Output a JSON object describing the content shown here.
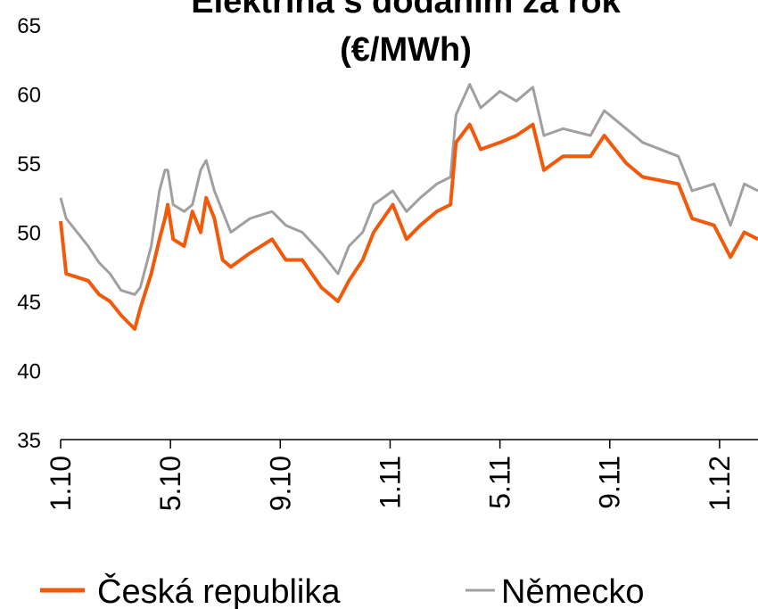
{
  "chart_data": {
    "type": "line",
    "title": [
      "Elektřina s dodáním za rok",
      "(€/MWh)"
    ],
    "x": [
      0,
      0.2,
      1.0,
      1.4,
      1.8,
      2.2,
      2.7,
      2.9,
      3.3,
      3.6,
      3.8,
      3.9,
      4.1,
      4.5,
      4.8,
      5.1,
      5.3,
      5.6,
      5.9,
      6.2,
      6.9,
      7.7,
      8.2,
      8.8,
      9.5,
      10.1,
      10.5,
      11.0,
      11.4,
      12.1,
      12.6,
      13.1,
      13.7,
      14.2,
      14.4,
      14.9,
      15.3,
      16.0,
      16.6,
      17.2,
      17.6,
      18.3,
      19.3,
      19.8,
      20.6,
      21.2,
      22.5,
      23.0,
      23.8,
      24.4,
      24.9,
      25.4
    ],
    "series": [
      {
        "name": "Česká republika",
        "color": "#f05a0a",
        "values": [
          50.8,
          47,
          46.5,
          45.5,
          45,
          44,
          43,
          44.5,
          47,
          49.5,
          51,
          52,
          49.5,
          49,
          51.5,
          50,
          52.5,
          51,
          48,
          47.5,
          48.5,
          49.5,
          48,
          48,
          46,
          45,
          46.5,
          48,
          50,
          52,
          49.5,
          50.5,
          51.5,
          52,
          56.5,
          57.8,
          56,
          56.5,
          57,
          57.8,
          54.5,
          55.5,
          55.5,
          57,
          55,
          54,
          53.5,
          51,
          50.5,
          48.2,
          50,
          49.5
        ]
      },
      {
        "name": "Německo",
        "color": "#a0a0a0",
        "values": [
          52.5,
          51,
          49,
          47.8,
          47,
          45.8,
          45.5,
          46,
          49,
          53,
          54.5,
          54.5,
          52,
          51.5,
          52,
          54.5,
          55.2,
          53,
          51.5,
          50,
          51,
          51.5,
          50.5,
          50,
          48.5,
          47,
          49,
          50,
          52,
          53,
          51.5,
          52.5,
          53.5,
          54,
          58.5,
          60.7,
          59,
          60.2,
          59.5,
          60.5,
          57,
          57.5,
          57,
          58.8,
          57.5,
          56.5,
          55.5,
          53,
          53.5,
          50.5,
          53.5,
          53
        ]
      }
    ],
    "xlim": [
      0,
      25.4
    ],
    "xticks": [
      {
        "value": 0,
        "label": "1.10"
      },
      {
        "value": 4,
        "label": "5.10"
      },
      {
        "value": 8,
        "label": "9.10"
      },
      {
        "value": 12,
        "label": "1.11"
      },
      {
        "value": 16,
        "label": "5.11"
      },
      {
        "value": 20,
        "label": "9.11"
      },
      {
        "value": 24,
        "label": "1.12"
      }
    ],
    "ylim": [
      35,
      65
    ],
    "yticks": [
      35,
      40,
      45,
      50,
      55,
      60,
      65
    ],
    "grid": false,
    "legend": "bottom"
  }
}
